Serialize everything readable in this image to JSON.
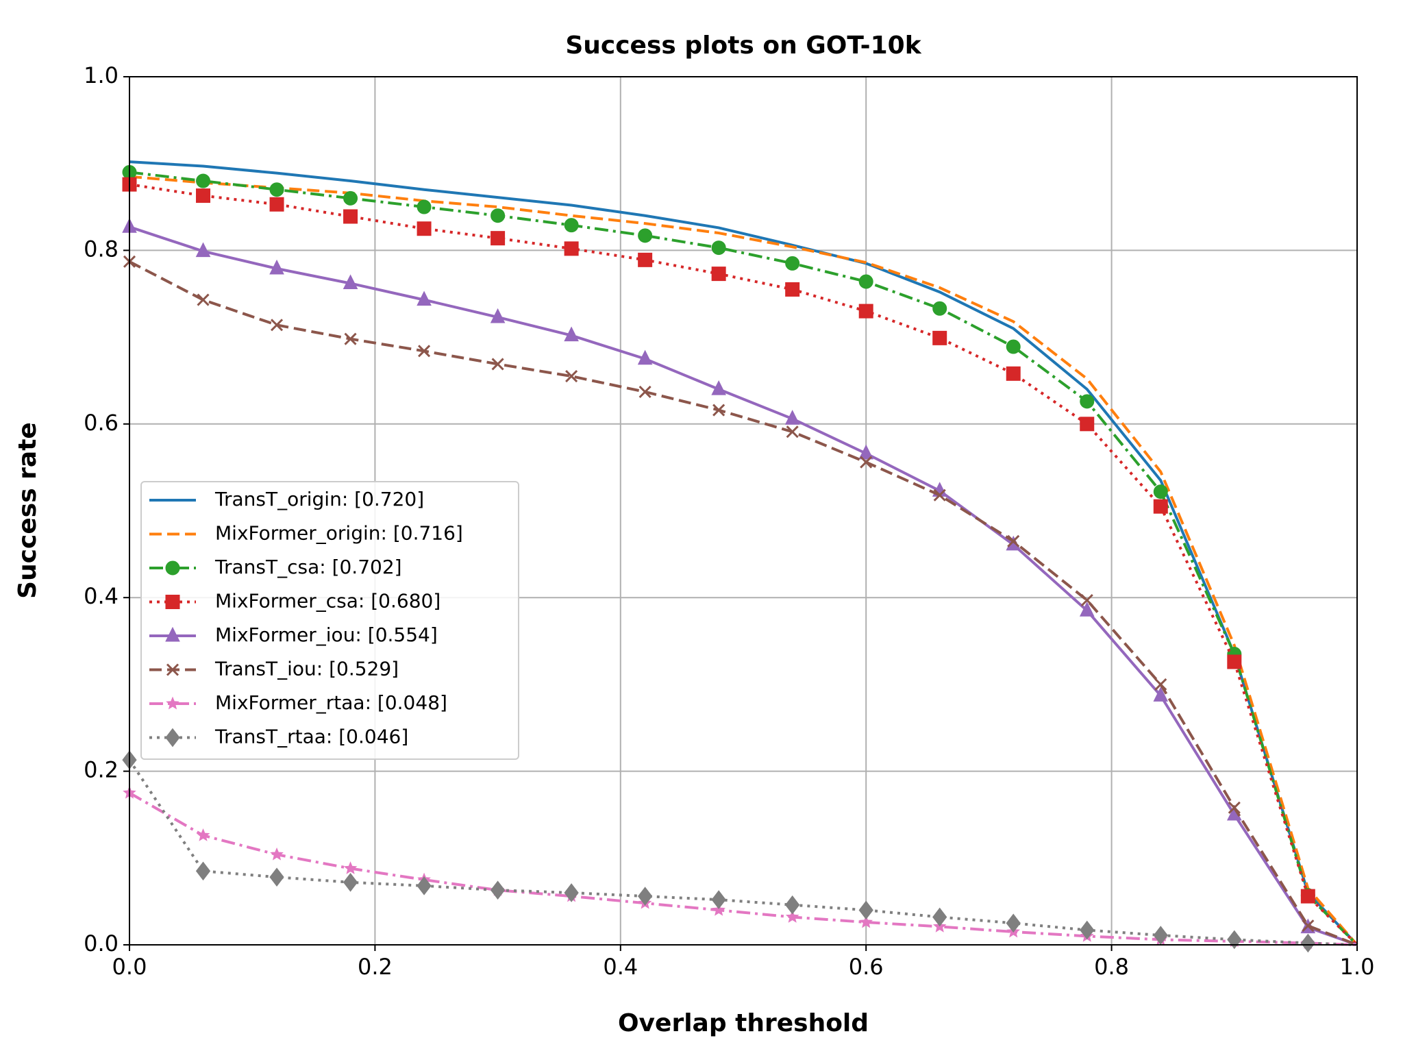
{
  "chart_data": {
    "type": "line",
    "title": "Success plots on GOT-10k",
    "xlabel": "Overlap threshold",
    "ylabel": "Success rate",
    "x": [
      0,
      0.06,
      0.12,
      0.18,
      0.24,
      0.3,
      0.36,
      0.42,
      0.48,
      0.54,
      0.6,
      0.66,
      0.72,
      0.78,
      0.84,
      0.9,
      0.96,
      1.0
    ],
    "series": [
      {
        "name": "TransT_origin: [0.720]",
        "color": "#1f77b4",
        "linestyle": "solid",
        "marker": "none",
        "values": [
          0.902,
          0.897,
          0.889,
          0.88,
          0.87,
          0.861,
          0.852,
          0.84,
          0.826,
          0.806,
          0.785,
          0.752,
          0.71,
          0.64,
          0.535,
          0.335,
          0.06,
          0
        ]
      },
      {
        "name": "MixFormer_origin: [0.716]",
        "color": "#ff7f0e",
        "linestyle": "dashed",
        "marker": "none",
        "values": [
          0.885,
          0.878,
          0.872,
          0.866,
          0.857,
          0.85,
          0.84,
          0.831,
          0.82,
          0.804,
          0.786,
          0.757,
          0.718,
          0.652,
          0.545,
          0.345,
          0.065,
          0
        ]
      },
      {
        "name": "TransT_csa: [0.702]",
        "color": "#2ca02c",
        "linestyle": "dashdot",
        "marker": "circle",
        "values": [
          0.89,
          0.88,
          0.87,
          0.86,
          0.85,
          0.84,
          0.829,
          0.817,
          0.803,
          0.785,
          0.764,
          0.733,
          0.689,
          0.626,
          0.522,
          0.335,
          0.057,
          0
        ]
      },
      {
        "name": "MixFormer_csa: [0.680]",
        "color": "#d62728",
        "linestyle": "dotted",
        "marker": "square",
        "values": [
          0.876,
          0.863,
          0.853,
          0.839,
          0.825,
          0.814,
          0.802,
          0.789,
          0.773,
          0.755,
          0.73,
          0.699,
          0.658,
          0.6,
          0.505,
          0.326,
          0.056,
          0
        ]
      },
      {
        "name": "MixFormer_iou: [0.554]",
        "color": "#9467bd",
        "linestyle": "solid",
        "marker": "triangle",
        "values": [
          0.827,
          0.799,
          0.779,
          0.762,
          0.743,
          0.723,
          0.702,
          0.675,
          0.64,
          0.606,
          0.566,
          0.523,
          0.461,
          0.385,
          0.287,
          0.15,
          0.02,
          0
        ]
      },
      {
        "name": "TransT_iou: [0.529]",
        "color": "#8c564b",
        "linestyle": "dashed",
        "marker": "x",
        "values": [
          0.787,
          0.743,
          0.714,
          0.698,
          0.684,
          0.669,
          0.655,
          0.637,
          0.616,
          0.591,
          0.556,
          0.518,
          0.465,
          0.397,
          0.3,
          0.158,
          0.022,
          0
        ]
      },
      {
        "name": "MixFormer_rtaa: [0.048]",
        "color": "#e377c2",
        "linestyle": "dashdot",
        "marker": "star",
        "values": [
          0.175,
          0.126,
          0.104,
          0.088,
          0.075,
          0.063,
          0.056,
          0.048,
          0.04,
          0.032,
          0.026,
          0.021,
          0.015,
          0.01,
          0.006,
          0.004,
          0.002,
          0
        ]
      },
      {
        "name": "TransT_rtaa: [0.046]",
        "color": "#7f7f7f",
        "linestyle": "dotted",
        "marker": "diamond",
        "values": [
          0.213,
          0.085,
          0.078,
          0.072,
          0.068,
          0.063,
          0.06,
          0.056,
          0.052,
          0.046,
          0.04,
          0.032,
          0.025,
          0.017,
          0.011,
          0.006,
          0.002,
          0
        ]
      }
    ],
    "xlim": [
      0,
      1
    ],
    "ylim": [
      0,
      1
    ],
    "xticks": [
      {
        "value": 0,
        "label": "0.0"
      },
      0.2,
      0.4,
      0.6,
      0.8,
      {
        "value": 1,
        "label": "1.0"
      }
    ],
    "yticks": [
      {
        "value": 0,
        "label": "0.0"
      },
      0.2,
      0.4,
      0.6,
      0.8,
      {
        "value": 1,
        "label": "1.0"
      }
    ],
    "grid": true,
    "legend": "center left"
  }
}
